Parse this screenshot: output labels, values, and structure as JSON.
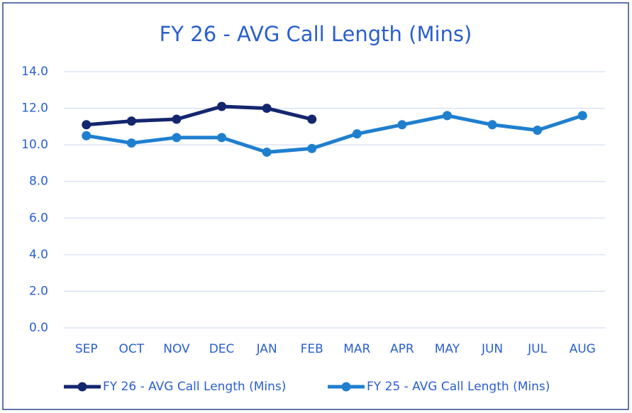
{
  "chart_data": {
    "type": "line",
    "title": "FY 26 - AVG Call Length (Mins)",
    "categories": [
      "SEP",
      "OCT",
      "NOV",
      "DEC",
      "JAN",
      "FEB",
      "MAR",
      "APR",
      "MAY",
      "JUN",
      "JUL",
      "AUG"
    ],
    "series": [
      {
        "name": "FY 26 - AVG Call Length (Mins)",
        "color": "#14266e",
        "values": [
          11.1,
          11.3,
          11.4,
          12.1,
          12.0,
          11.4,
          null,
          null,
          null,
          null,
          null,
          null
        ]
      },
      {
        "name": "FY 25 - AVG Call Length (Mins)",
        "color": "#1f7fcf",
        "values": [
          10.5,
          10.1,
          10.4,
          10.4,
          9.6,
          9.8,
          10.6,
          11.1,
          11.6,
          11.1,
          10.8,
          11.6
        ]
      }
    ],
    "ylim": [
      0,
      14
    ],
    "yticks": [
      {
        "value": 0,
        "label": "0.0"
      },
      {
        "value": 2,
        "label": "2.0"
      },
      {
        "value": 4,
        "label": "4.0"
      },
      {
        "value": 6,
        "label": "6.0"
      },
      {
        "value": 8,
        "label": "8.0"
      },
      {
        "value": 10,
        "label": "10.0"
      },
      {
        "value": 12,
        "label": "12.0"
      },
      {
        "value": 14,
        "label": "14.0"
      }
    ],
    "grid": true,
    "legend": "bottom"
  }
}
